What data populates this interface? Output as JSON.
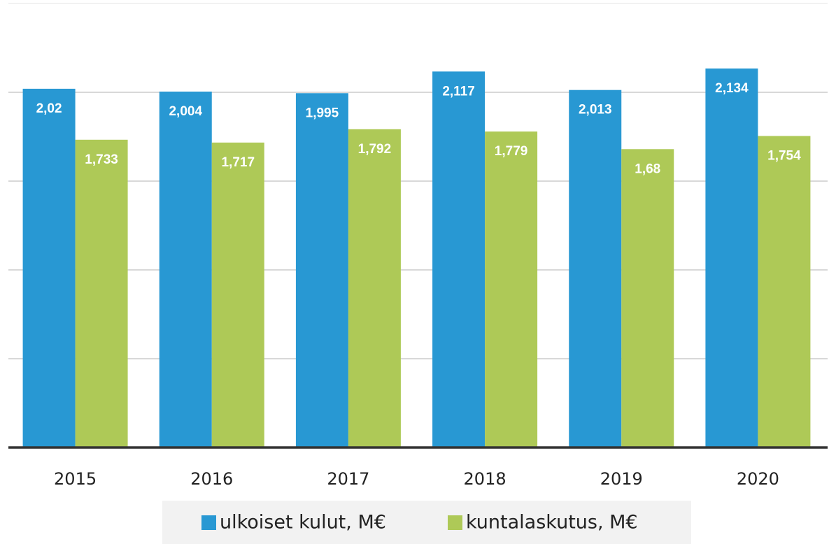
{
  "chart_data": {
    "type": "bar",
    "categories": [
      "2015",
      "2016",
      "2017",
      "2018",
      "2019",
      "2020"
    ],
    "series": [
      {
        "name": "ulkoiset kulut, M€",
        "color": "#2898d3",
        "values": [
          2.02,
          2.004,
          1.995,
          2.117,
          2.013,
          2.134
        ],
        "value_labels": [
          "2,02",
          "2,004",
          "1,995",
          "2,117",
          "2,013",
          "2,134"
        ]
      },
      {
        "name": "kuntalaskutus, M€",
        "color": "#aec957",
        "values": [
          1.733,
          1.717,
          1.792,
          1.779,
          1.68,
          1.754
        ],
        "value_labels": [
          "1,733",
          "1,717",
          "1,792",
          "1,779",
          "1,68",
          "1,754"
        ]
      }
    ],
    "ylim": [
      0,
      2.5
    ],
    "yticks": [
      0,
      0.5,
      1,
      1.5,
      2,
      2.5
    ],
    "grid": true,
    "legend": "bottom"
  }
}
